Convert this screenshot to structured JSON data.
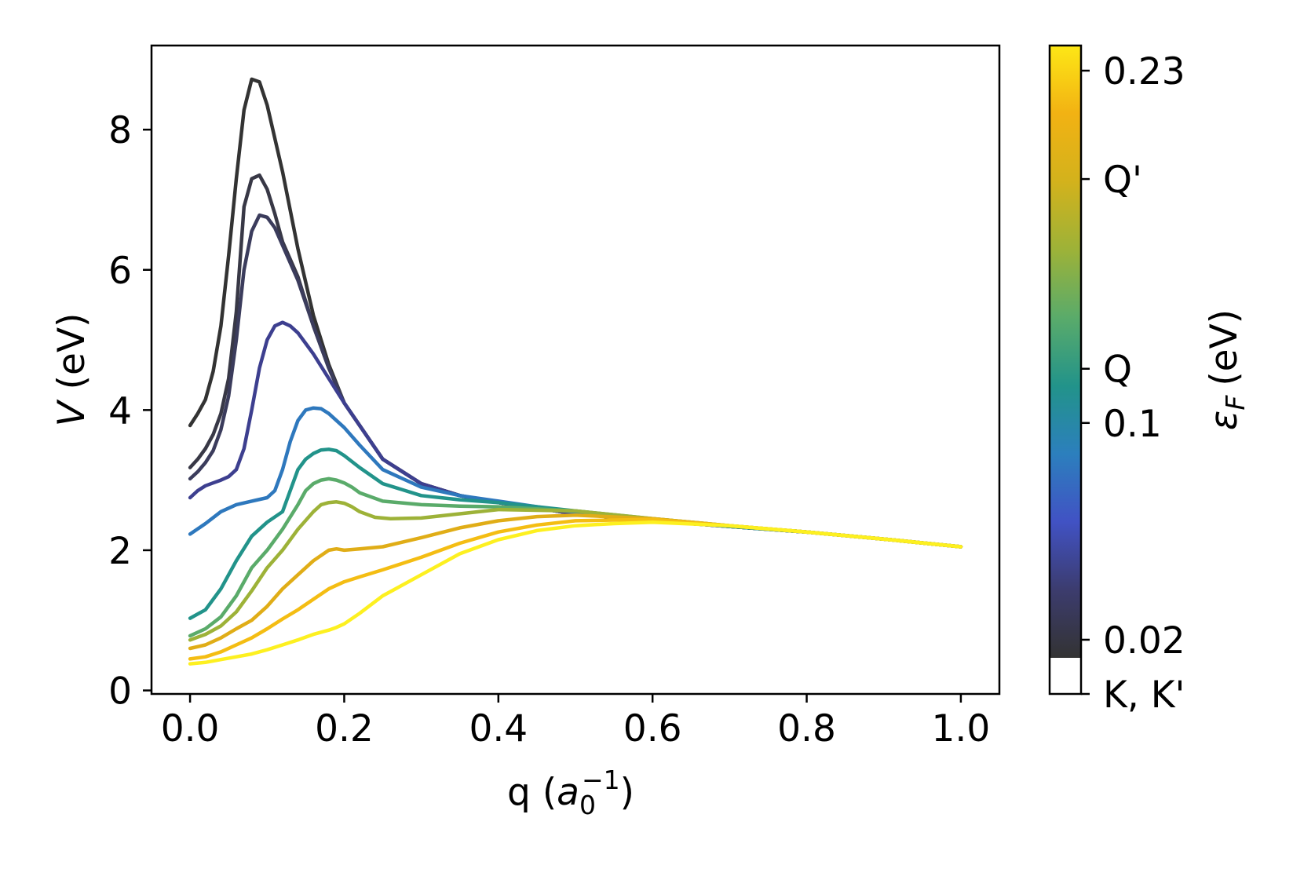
{
  "chart_data": {
    "type": "line",
    "xlabel": "q",
    "xlabel_unit_base": "a",
    "xlabel_unit_sub": "0",
    "xlabel_unit_sup": "−1",
    "ylabel_var": "V",
    "ylabel_unit": "(eV)",
    "xlim": [
      -0.05,
      1.05
    ],
    "ylim": [
      -0.05,
      9.2
    ],
    "x_ticks": [
      0.0,
      0.2,
      0.4,
      0.6,
      0.8,
      1.0
    ],
    "x_tick_labels": [
      "0.0",
      "0.2",
      "0.4",
      "0.6",
      "0.8",
      "1.0"
    ],
    "y_ticks": [
      0,
      2,
      4,
      6,
      8
    ],
    "y_tick_labels": [
      "0",
      "2",
      "4",
      "6",
      "8"
    ],
    "grid": false,
    "colorbar": {
      "label_var": "ε",
      "label_sub": "F",
      "label_unit": "(eV)",
      "tick_labels": [
        "K, K'",
        "0.02",
        "0.1",
        "Q",
        "Q'",
        "0.23"
      ],
      "tick_values": [
        0.0,
        0.02,
        0.1,
        0.12,
        0.19,
        0.23
      ],
      "colors": [
        "#333333",
        "#3c3c6e",
        "#4152c4",
        "#2c7fbd",
        "#22938a",
        "#5aab6a",
        "#9db238",
        "#d3b21c",
        "#f2b213",
        "#fde716"
      ]
    },
    "series": [
      {
        "color": "#333333",
        "x": [
          0,
          0.01,
          0.02,
          0.03,
          0.04,
          0.05,
          0.06,
          0.07,
          0.08,
          0.09,
          0.1,
          0.12,
          0.14,
          0.16,
          0.18,
          0.2,
          0.25,
          0.3,
          0.35,
          0.4,
          0.5,
          0.6,
          0.7,
          0.8,
          0.9,
          1.0
        ],
        "y": [
          3.78,
          3.95,
          4.15,
          4.55,
          5.2,
          6.2,
          7.3,
          8.28,
          8.72,
          8.68,
          8.35,
          7.4,
          6.3,
          5.35,
          4.65,
          4.1,
          3.3,
          2.95,
          2.78,
          2.68,
          2.52,
          2.42,
          2.34,
          2.26,
          2.16,
          2.05
        ]
      },
      {
        "color": "#383846",
        "x": [
          0,
          0.01,
          0.02,
          0.03,
          0.04,
          0.05,
          0.06,
          0.07,
          0.08,
          0.09,
          0.1,
          0.11,
          0.12,
          0.14,
          0.16,
          0.18,
          0.2,
          0.25,
          0.3,
          0.35,
          0.4,
          0.5,
          0.6,
          0.7,
          0.8,
          0.9,
          1.0
        ],
        "y": [
          3.18,
          3.3,
          3.45,
          3.65,
          3.95,
          4.45,
          5.4,
          6.9,
          7.3,
          7.35,
          7.15,
          6.8,
          6.4,
          5.9,
          5.2,
          4.6,
          4.1,
          3.3,
          2.95,
          2.78,
          2.68,
          2.52,
          2.42,
          2.34,
          2.26,
          2.16,
          2.05
        ]
      },
      {
        "color": "#3b3c5c",
        "x": [
          0,
          0.01,
          0.02,
          0.03,
          0.04,
          0.05,
          0.06,
          0.07,
          0.08,
          0.09,
          0.1,
          0.11,
          0.12,
          0.14,
          0.16,
          0.18,
          0.2,
          0.25,
          0.3,
          0.35,
          0.4,
          0.5,
          0.6,
          0.7,
          0.8,
          0.9,
          1.0
        ],
        "y": [
          3.02,
          3.12,
          3.25,
          3.42,
          3.72,
          4.2,
          5.0,
          6.0,
          6.55,
          6.78,
          6.75,
          6.6,
          6.35,
          5.85,
          5.2,
          4.6,
          4.1,
          3.3,
          2.95,
          2.78,
          2.68,
          2.52,
          2.42,
          2.34,
          2.26,
          2.16,
          2.05
        ]
      },
      {
        "color": "#3d3f8f",
        "x": [
          0,
          0.01,
          0.02,
          0.03,
          0.04,
          0.05,
          0.06,
          0.07,
          0.08,
          0.09,
          0.1,
          0.11,
          0.12,
          0.13,
          0.14,
          0.15,
          0.16,
          0.18,
          0.2,
          0.25,
          0.3,
          0.35,
          0.4,
          0.5,
          0.6,
          0.7,
          0.8,
          0.9,
          1.0
        ],
        "y": [
          2.75,
          2.85,
          2.92,
          2.96,
          3.0,
          3.05,
          3.15,
          3.45,
          4.0,
          4.6,
          5.0,
          5.2,
          5.25,
          5.2,
          5.1,
          4.95,
          4.8,
          4.45,
          4.1,
          3.3,
          2.95,
          2.78,
          2.68,
          2.52,
          2.42,
          2.34,
          2.26,
          2.16,
          2.05
        ]
      },
      {
        "color": "#2e78bd",
        "x": [
          0,
          0.02,
          0.04,
          0.06,
          0.08,
          0.1,
          0.11,
          0.12,
          0.13,
          0.14,
          0.15,
          0.16,
          0.17,
          0.18,
          0.2,
          0.22,
          0.25,
          0.3,
          0.35,
          0.4,
          0.5,
          0.6,
          0.7,
          0.8,
          0.9,
          1.0
        ],
        "y": [
          2.23,
          2.38,
          2.55,
          2.65,
          2.7,
          2.75,
          2.85,
          3.15,
          3.55,
          3.85,
          4.0,
          4.03,
          4.02,
          3.95,
          3.75,
          3.5,
          3.15,
          2.9,
          2.78,
          2.7,
          2.54,
          2.43,
          2.34,
          2.26,
          2.16,
          2.05
        ]
      },
      {
        "color": "#22938a",
        "x": [
          0,
          0.02,
          0.04,
          0.06,
          0.08,
          0.1,
          0.12,
          0.13,
          0.14,
          0.15,
          0.16,
          0.17,
          0.18,
          0.19,
          0.2,
          0.22,
          0.25,
          0.3,
          0.35,
          0.4,
          0.5,
          0.6,
          0.7,
          0.8,
          0.9,
          1.0
        ],
        "y": [
          1.03,
          1.15,
          1.45,
          1.85,
          2.2,
          2.4,
          2.55,
          2.85,
          3.15,
          3.3,
          3.38,
          3.43,
          3.44,
          3.42,
          3.35,
          3.18,
          2.95,
          2.78,
          2.72,
          2.68,
          2.56,
          2.44,
          2.34,
          2.26,
          2.16,
          2.05
        ]
      },
      {
        "color": "#5aab6a",
        "x": [
          0,
          0.02,
          0.04,
          0.06,
          0.08,
          0.1,
          0.12,
          0.14,
          0.15,
          0.16,
          0.17,
          0.18,
          0.19,
          0.2,
          0.21,
          0.22,
          0.25,
          0.3,
          0.35,
          0.4,
          0.5,
          0.6,
          0.7,
          0.8,
          0.9,
          1.0
        ],
        "y": [
          0.78,
          0.88,
          1.05,
          1.35,
          1.75,
          2.0,
          2.3,
          2.65,
          2.85,
          2.95,
          3.0,
          3.02,
          3.0,
          2.96,
          2.9,
          2.82,
          2.7,
          2.65,
          2.63,
          2.62,
          2.56,
          2.45,
          2.35,
          2.26,
          2.16,
          2.05
        ]
      },
      {
        "color": "#9db238",
        "x": [
          0,
          0.02,
          0.04,
          0.06,
          0.08,
          0.1,
          0.12,
          0.14,
          0.16,
          0.17,
          0.18,
          0.19,
          0.2,
          0.21,
          0.22,
          0.24,
          0.26,
          0.3,
          0.35,
          0.4,
          0.5,
          0.6,
          0.7,
          0.8,
          0.9,
          1.0
        ],
        "y": [
          0.72,
          0.8,
          0.92,
          1.12,
          1.42,
          1.75,
          2.0,
          2.3,
          2.55,
          2.65,
          2.68,
          2.69,
          2.67,
          2.62,
          2.55,
          2.47,
          2.45,
          2.46,
          2.52,
          2.58,
          2.56,
          2.45,
          2.35,
          2.26,
          2.16,
          2.05
        ]
      },
      {
        "color": "#e0ad17",
        "x": [
          0,
          0.02,
          0.04,
          0.06,
          0.08,
          0.1,
          0.12,
          0.14,
          0.16,
          0.18,
          0.19,
          0.2,
          0.22,
          0.25,
          0.3,
          0.35,
          0.4,
          0.45,
          0.5,
          0.6,
          0.7,
          0.8,
          0.9,
          1.0
        ],
        "y": [
          0.6,
          0.65,
          0.75,
          0.88,
          1.0,
          1.2,
          1.45,
          1.65,
          1.85,
          2.0,
          2.02,
          2.0,
          2.02,
          2.05,
          2.18,
          2.32,
          2.42,
          2.48,
          2.5,
          2.45,
          2.35,
          2.26,
          2.16,
          2.05
        ]
      },
      {
        "color": "#f4bd13",
        "x": [
          0,
          0.02,
          0.04,
          0.06,
          0.08,
          0.1,
          0.12,
          0.14,
          0.16,
          0.18,
          0.2,
          0.22,
          0.25,
          0.3,
          0.35,
          0.4,
          0.45,
          0.5,
          0.6,
          0.7,
          0.8,
          0.9,
          1.0
        ],
        "y": [
          0.45,
          0.48,
          0.55,
          0.65,
          0.75,
          0.88,
          1.02,
          1.15,
          1.3,
          1.45,
          1.55,
          1.62,
          1.72,
          1.9,
          2.1,
          2.26,
          2.36,
          2.42,
          2.44,
          2.35,
          2.26,
          2.16,
          2.05
        ]
      },
      {
        "color": "#fdf020",
        "x": [
          0,
          0.02,
          0.04,
          0.06,
          0.08,
          0.1,
          0.12,
          0.14,
          0.16,
          0.18,
          0.19,
          0.2,
          0.22,
          0.25,
          0.3,
          0.35,
          0.4,
          0.45,
          0.5,
          0.55,
          0.6,
          0.7,
          0.8,
          0.9,
          1.0
        ],
        "y": [
          0.38,
          0.4,
          0.44,
          0.48,
          0.52,
          0.58,
          0.65,
          0.72,
          0.8,
          0.86,
          0.9,
          0.95,
          1.1,
          1.35,
          1.65,
          1.95,
          2.15,
          2.28,
          2.35,
          2.38,
          2.4,
          2.35,
          2.26,
          2.16,
          2.05
        ]
      }
    ]
  }
}
